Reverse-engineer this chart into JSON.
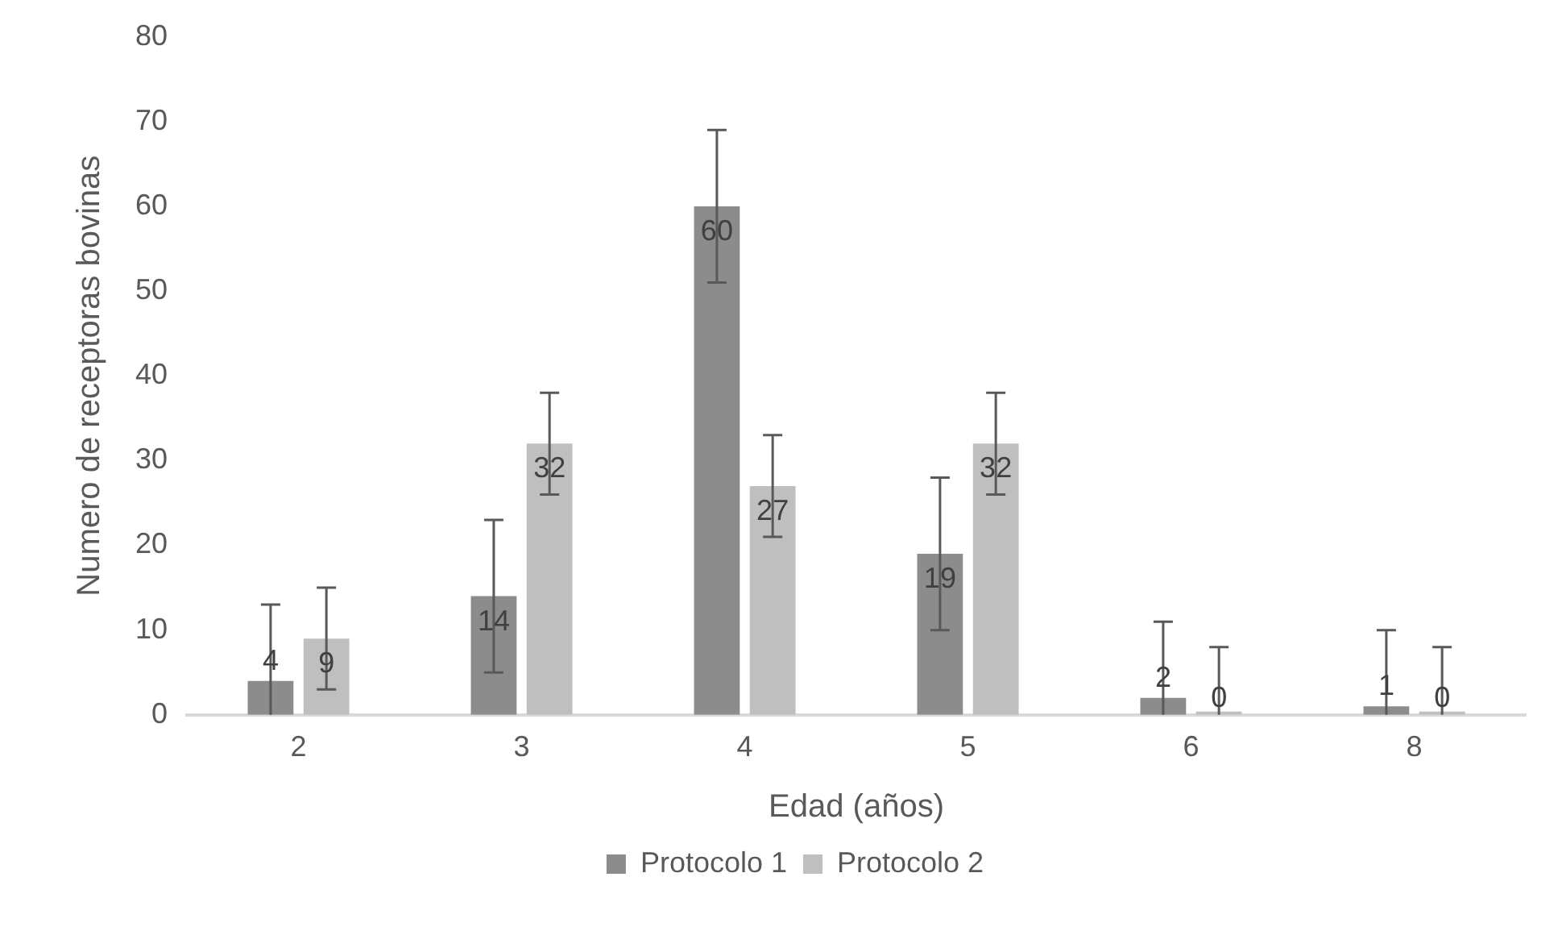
{
  "chart_data": {
    "type": "bar",
    "xlabel": "Edad (años)",
    "ylabel": "Numero de receptoras bovinas",
    "categories": [
      "2",
      "3",
      "4",
      "5",
      "6",
      "8"
    ],
    "series": [
      {
        "name": "Protocolo 1",
        "color": "#8c8c8c",
        "values": [
          4,
          14,
          60,
          19,
          2,
          1
        ],
        "errors": [
          [
            0,
            13
          ],
          9,
          9,
          9,
          [
            0,
            11
          ],
          [
            0,
            10
          ]
        ]
      },
      {
        "name": "Protocolo 2",
        "color": "#bfbfbf",
        "values": [
          9,
          32,
          27,
          32,
          0,
          0
        ],
        "errors": [
          6,
          6,
          6,
          6,
          [
            0,
            8
          ],
          [
            0,
            8
          ]
        ]
      }
    ],
    "ylim": [
      0,
      80
    ],
    "yticks": [
      0,
      10,
      20,
      30,
      40,
      50,
      60,
      70,
      80
    ],
    "grid": false,
    "legend": "bottom",
    "data_labels": true
  }
}
